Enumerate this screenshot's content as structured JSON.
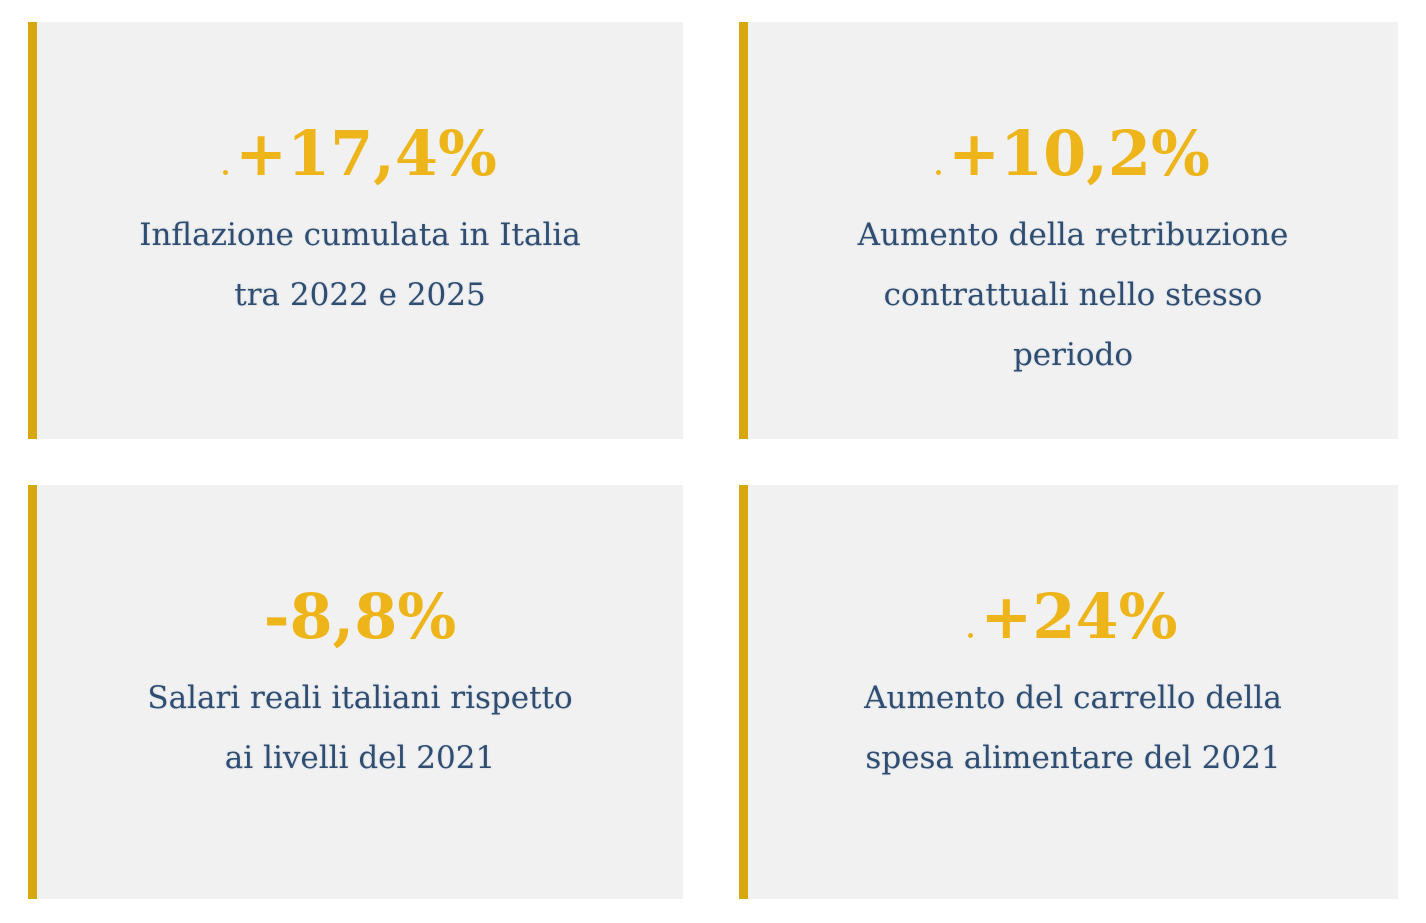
{
  "colors": {
    "page_bg": "#ffffff",
    "card_bg": "#f1f1f2",
    "accent_bar": "#d7a70e",
    "value": "#edb51a",
    "text": "#2e4d71"
  },
  "cards": [
    {
      "value": "+17,4%",
      "prefix_dot": true,
      "description_lines": [
        "Inflazione cumulata in Italia",
        "tra 2022 e 2025"
      ]
    },
    {
      "value": "+10,2%",
      "prefix_dot": true,
      "description_lines": [
        "Aumento della retribuzione",
        "contrattuali nello stesso",
        "periodo"
      ]
    },
    {
      "value": "-8,8%",
      "prefix_dot": false,
      "description_lines": [
        "Salari reali italiani rispetto",
        "ai livelli del 2021"
      ]
    },
    {
      "value": "+24%",
      "prefix_dot": true,
      "description_lines": [
        "Aumento del carrello della",
        "spesa alimentare del 2021"
      ]
    }
  ],
  "chart_data": {
    "type": "table",
    "title": "",
    "categories": [
      "Inflazione cumulata in Italia tra 2022 e 2025",
      "Aumento della retribuzione contrattuali nello stesso periodo",
      "Salari reali italiani rispetto ai livelli del 2021",
      "Aumento del carrello della spesa alimentare del 2021"
    ],
    "values": [
      17.4,
      10.2,
      -8.8,
      24
    ],
    "unit": "%"
  }
}
